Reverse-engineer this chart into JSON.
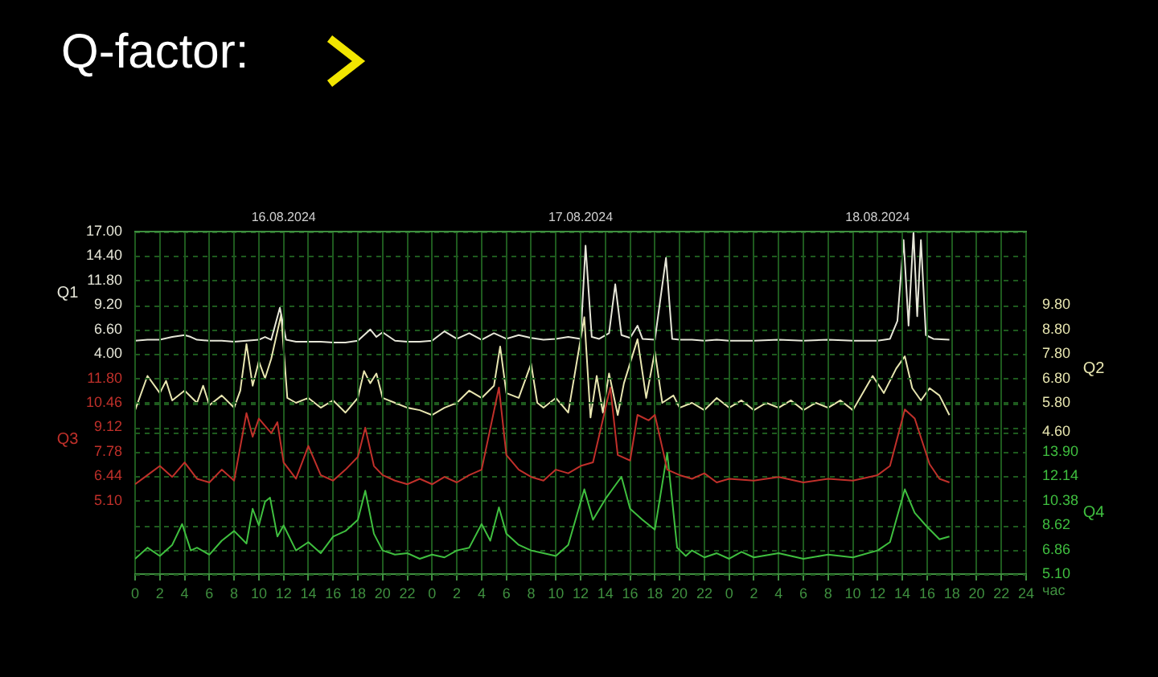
{
  "chart_data": [
    {
      "type": "line",
      "title": "Q-factor:",
      "grid": "y",
      "tick_labels": "y",
      "xlim": [
        "2024-08-16T00:00",
        "2024-08-19T00:00"
      ],
      "ylabel": "Q1",
      "ylim": [
        -19.4,
        17
      ],
      "yticks": [
        {
          "value": 4,
          "label": "4.00"
        },
        {
          "value": 6.6,
          "label": "6.60"
        },
        {
          "value": 9.2,
          "label": "9.20"
        },
        {
          "value": 11.8,
          "label": "11.80"
        },
        {
          "value": 14.4,
          "label": "14.40"
        },
        {
          "value": 17,
          "label": "17.00"
        }
      ],
      "y2label": "Q2",
      "y2lim": [
        -1.2,
        12.8
      ],
      "y2ticks": [
        {
          "value": 4.6,
          "label": "4.60"
        },
        {
          "value": 5.8,
          "label": "5.80"
        },
        {
          "value": 6.8,
          "label": "6.80"
        },
        {
          "value": 7.8,
          "label": "7.80"
        },
        {
          "value": 8.8,
          "label": "8.80"
        },
        {
          "value": 9.8,
          "label": "9.80"
        }
      ],
      "series": [
        {
          "color": "#e6e6d8",
          "axis": "y",
          "x": [
            "2024-08-16T00:00",
            "2024-08-16T01:00",
            "2024-08-16T02:00",
            "2024-08-16T03:00",
            "2024-08-16T04:00",
            "2024-08-16T04:30",
            "2024-08-16T05:00",
            "2024-08-16T06:00",
            "2024-08-16T07:00",
            "2024-08-16T08:00",
            "2024-08-16T09:00",
            "2024-08-16T10:00",
            "2024-08-16T10:30",
            "2024-08-16T11:00",
            "2024-08-16T11:42",
            "2024-08-16T12:12",
            "2024-08-16T13:00",
            "2024-08-16T14:00",
            "2024-08-16T15:00",
            "2024-08-16T16:00",
            "2024-08-16T17:00",
            "2024-08-16T18:00",
            "2024-08-16T19:00",
            "2024-08-16T19:30",
            "2024-08-16T20:00",
            "2024-08-16T21:00",
            "2024-08-16T22:00",
            "2024-08-16T23:00",
            "2024-08-17T00:00",
            "2024-08-17T01:00",
            "2024-08-17T02:00",
            "2024-08-17T03:00",
            "2024-08-17T04:00",
            "2024-08-17T05:00",
            "2024-08-17T06:00",
            "2024-08-17T07:00",
            "2024-08-17T08:00",
            "2024-08-17T09:00",
            "2024-08-17T10:00",
            "2024-08-17T11:00",
            "2024-08-17T12:00",
            "2024-08-17T12:24",
            "2024-08-17T12:54",
            "2024-08-17T13:30",
            "2024-08-17T14:18",
            "2024-08-17T14:48",
            "2024-08-17T15:18",
            "2024-08-17T16:00",
            "2024-08-17T16:36",
            "2024-08-17T17:00",
            "2024-08-17T18:00",
            "2024-08-17T18:54",
            "2024-08-17T19:24",
            "2024-08-17T20:00",
            "2024-08-17T21:00",
            "2024-08-17T22:00",
            "2024-08-17T23:00",
            "2024-08-18T00:00",
            "2024-08-18T02:00",
            "2024-08-18T04:00",
            "2024-08-18T06:00",
            "2024-08-18T08:00",
            "2024-08-18T10:00",
            "2024-08-18T12:00",
            "2024-08-18T13:00",
            "2024-08-18T13:36",
            "2024-08-18T14:06",
            "2024-08-18T14:30",
            "2024-08-18T14:54",
            "2024-08-18T15:12",
            "2024-08-18T15:30",
            "2024-08-18T15:54",
            "2024-08-18T16:30",
            "2024-08-18T17:48"
          ],
          "values": [
            5.4,
            5.5,
            5.5,
            5.8,
            6.0,
            5.8,
            5.5,
            5.4,
            5.4,
            5.3,
            5.4,
            5.5,
            5.8,
            5.5,
            8.9,
            5.5,
            5.3,
            5.3,
            5.3,
            5.2,
            5.2,
            5.4,
            6.6,
            5.8,
            6.3,
            5.4,
            5.3,
            5.3,
            5.4,
            6.4,
            5.6,
            6.2,
            5.5,
            6.2,
            5.6,
            6.0,
            5.7,
            5.5,
            5.6,
            5.8,
            5.6,
            15.5,
            5.8,
            5.6,
            6.2,
            11.4,
            6.0,
            5.7,
            7.0,
            5.6,
            5.5,
            14.2,
            5.6,
            5.5,
            5.5,
            5.4,
            5.5,
            5.4,
            5.4,
            5.5,
            5.4,
            5.5,
            5.4,
            5.4,
            5.6,
            7.5,
            16.1,
            7.0,
            17.0,
            8.0,
            16.1,
            6.0,
            5.6,
            5.5
          ]
        },
        {
          "color": "#e8e6b0",
          "axis": "y2",
          "x": [
            "2024-08-16T00:00",
            "2024-08-16T01:00",
            "2024-08-16T02:00",
            "2024-08-16T02:30",
            "2024-08-16T03:00",
            "2024-08-16T04:00",
            "2024-08-16T05:00",
            "2024-08-16T05:30",
            "2024-08-16T06:00",
            "2024-08-16T07:00",
            "2024-08-16T08:00",
            "2024-08-16T08:30",
            "2024-08-16T09:00",
            "2024-08-16T09:30",
            "2024-08-16T10:00",
            "2024-08-16T10:30",
            "2024-08-16T11:00",
            "2024-08-16T11:48",
            "2024-08-16T12:18",
            "2024-08-16T13:00",
            "2024-08-16T14:00",
            "2024-08-16T15:00",
            "2024-08-16T16:00",
            "2024-08-16T17:00",
            "2024-08-16T18:00",
            "2024-08-16T18:30",
            "2024-08-16T19:00",
            "2024-08-16T19:30",
            "2024-08-16T20:00",
            "2024-08-16T21:00",
            "2024-08-16T22:00",
            "2024-08-16T23:00",
            "2024-08-17T00:00",
            "2024-08-17T01:00",
            "2024-08-17T02:00",
            "2024-08-17T03:00",
            "2024-08-17T04:00",
            "2024-08-17T05:00",
            "2024-08-17T05:30",
            "2024-08-17T06:00",
            "2024-08-17T07:00",
            "2024-08-17T08:00",
            "2024-08-17T08:30",
            "2024-08-17T09:00",
            "2024-08-17T10:00",
            "2024-08-17T11:00",
            "2024-08-17T12:18",
            "2024-08-17T12:48",
            "2024-08-17T13:18",
            "2024-08-17T13:48",
            "2024-08-17T14:18",
            "2024-08-17T15:00",
            "2024-08-17T15:30",
            "2024-08-17T16:36",
            "2024-08-17T17:18",
            "2024-08-17T18:00",
            "2024-08-17T18:36",
            "2024-08-17T19:30",
            "2024-08-17T20:00",
            "2024-08-17T21:00",
            "2024-08-17T22:00",
            "2024-08-17T23:00",
            "2024-08-18T00:00",
            "2024-08-18T01:00",
            "2024-08-18T02:00",
            "2024-08-18T03:00",
            "2024-08-18T04:00",
            "2024-08-18T05:00",
            "2024-08-18T06:00",
            "2024-08-18T07:00",
            "2024-08-18T08:00",
            "2024-08-18T09:00",
            "2024-08-18T10:00",
            "2024-08-18T11:36",
            "2024-08-18T12:30",
            "2024-08-18T13:30",
            "2024-08-18T14:12",
            "2024-08-18T14:48",
            "2024-08-18T15:30",
            "2024-08-18T16:12",
            "2024-08-18T17:00",
            "2024-08-18T17:48"
          ],
          "values": [
            5.5,
            6.9,
            6.2,
            6.7,
            5.9,
            6.3,
            5.8,
            6.5,
            5.7,
            6.1,
            5.6,
            6.3,
            8.2,
            6.5,
            7.5,
            6.8,
            7.6,
            9.4,
            6.0,
            5.8,
            6.0,
            5.6,
            5.9,
            5.4,
            6.0,
            7.1,
            6.6,
            7.0,
            6.0,
            5.8,
            5.6,
            5.5,
            5.3,
            5.6,
            5.8,
            6.3,
            6.0,
            6.5,
            8.1,
            6.2,
            6.0,
            7.4,
            5.8,
            5.6,
            6.0,
            5.4,
            9.3,
            5.2,
            6.9,
            5.4,
            7.0,
            5.3,
            6.6,
            8.4,
            6.0,
            7.9,
            5.8,
            6.1,
            5.6,
            5.8,
            5.5,
            6.0,
            5.6,
            5.9,
            5.5,
            5.8,
            5.6,
            5.9,
            5.5,
            5.8,
            5.6,
            5.9,
            5.5,
            6.9,
            6.2,
            7.2,
            7.7,
            6.4,
            5.9,
            6.4,
            6.1,
            5.3
          ]
        }
      ]
    },
    {
      "type": "line",
      "xlabel": "час",
      "grid": true,
      "xlim": [
        "2024-08-16T00:00",
        "2024-08-19T00:00"
      ],
      "xticks": [
        {
          "value": "2024-08-16T00:00",
          "label": "0"
        },
        {
          "value": "2024-08-16T02:00",
          "label": "2"
        },
        {
          "value": "2024-08-16T04:00",
          "label": "4"
        },
        {
          "value": "2024-08-16T06:00",
          "label": "6"
        },
        {
          "value": "2024-08-16T08:00",
          "label": "8"
        },
        {
          "value": "2024-08-16T10:00",
          "label": "10"
        },
        {
          "value": "2024-08-16T12:00",
          "label": "12"
        },
        {
          "value": "2024-08-16T14:00",
          "label": "14"
        },
        {
          "value": "2024-08-16T16:00",
          "label": "16"
        },
        {
          "value": "2024-08-16T18:00",
          "label": "18"
        },
        {
          "value": "2024-08-16T20:00",
          "label": "20"
        },
        {
          "value": "2024-08-16T22:00",
          "label": "22"
        },
        {
          "value": "2024-08-17T00:00",
          "label": "0"
        },
        {
          "value": "2024-08-17T02:00",
          "label": "2"
        },
        {
          "value": "2024-08-17T04:00",
          "label": "4"
        },
        {
          "value": "2024-08-17T06:00",
          "label": "6"
        },
        {
          "value": "2024-08-17T08:00",
          "label": "8"
        },
        {
          "value": "2024-08-17T10:00",
          "label": "10"
        },
        {
          "value": "2024-08-17T12:00",
          "label": "12"
        },
        {
          "value": "2024-08-17T14:00",
          "label": "14"
        },
        {
          "value": "2024-08-17T16:00",
          "label": "16"
        },
        {
          "value": "2024-08-17T18:00",
          "label": "18"
        },
        {
          "value": "2024-08-17T20:00",
          "label": "20"
        },
        {
          "value": "2024-08-17T22:00",
          "label": "22"
        },
        {
          "value": "2024-08-18T00:00",
          "label": "0"
        },
        {
          "value": "2024-08-18T02:00",
          "label": "2"
        },
        {
          "value": "2024-08-18T04:00",
          "label": "4"
        },
        {
          "value": "2024-08-18T06:00",
          "label": "6"
        },
        {
          "value": "2024-08-18T08:00",
          "label": "8"
        },
        {
          "value": "2024-08-18T10:00",
          "label": "10"
        },
        {
          "value": "2024-08-18T12:00",
          "label": "12"
        },
        {
          "value": "2024-08-18T14:00",
          "label": "14"
        },
        {
          "value": "2024-08-18T16:00",
          "label": "16"
        },
        {
          "value": "2024-08-18T18:00",
          "label": "18"
        },
        {
          "value": "2024-08-18T20:00",
          "label": "20"
        },
        {
          "value": "2024-08-18T22:00",
          "label": "22"
        },
        {
          "value": "2024-08-19T00:00",
          "label": "24"
        }
      ],
      "x2lim": [
        "2024-08-16T00:00",
        "2024-08-19T00:00"
      ],
      "x2ticks": [
        {
          "value": "2024-08-16T12:00",
          "label": "16.08.2024"
        },
        {
          "value": "2024-08-17T12:00",
          "label": "17.08.2024"
        },
        {
          "value": "2024-08-18T12:00",
          "label": "18.08.2024"
        }
      ],
      "ylabel": "Q3",
      "ylim": [
        1.08,
        19.84
      ],
      "yticks": [
        {
          "value": 5.1,
          "label": "5.10"
        },
        {
          "value": 6.44,
          "label": "6.44"
        },
        {
          "value": 7.78,
          "label": "7.78"
        },
        {
          "value": 9.12,
          "label": "9.12"
        },
        {
          "value": 10.46,
          "label": "10.46"
        },
        {
          "value": 11.8,
          "label": "11.80"
        }
      ],
      "y2label": "Q4",
      "y2lim": [
        5.1,
        29.74
      ],
      "y2ticks": [
        {
          "value": 5.1,
          "label": "5.10"
        },
        {
          "value": 6.86,
          "label": "6.86"
        },
        {
          "value": 8.62,
          "label": "8.62"
        },
        {
          "value": 10.38,
          "label": "10.38"
        },
        {
          "value": 12.14,
          "label": "12.14"
        },
        {
          "value": 13.9,
          "label": "13.90"
        }
      ],
      "series": [
        {
          "color": "#c0302a",
          "axis": "y",
          "x": [
            "2024-08-16T00:00",
            "2024-08-16T01:00",
            "2024-08-16T02:00",
            "2024-08-16T03:00",
            "2024-08-16T04:00",
            "2024-08-16T05:00",
            "2024-08-16T06:00",
            "2024-08-16T07:00",
            "2024-08-16T08:00",
            "2024-08-16T09:00",
            "2024-08-16T09:30",
            "2024-08-16T10:00",
            "2024-08-16T11:00",
            "2024-08-16T11:30",
            "2024-08-16T12:00",
            "2024-08-16T13:00",
            "2024-08-16T14:00",
            "2024-08-16T15:00",
            "2024-08-16T16:00",
            "2024-08-16T17:00",
            "2024-08-16T18:00",
            "2024-08-16T18:36",
            "2024-08-16T19:18",
            "2024-08-16T20:00",
            "2024-08-16T21:00",
            "2024-08-16T22:00",
            "2024-08-16T23:00",
            "2024-08-17T00:00",
            "2024-08-17T01:00",
            "2024-08-17T02:00",
            "2024-08-17T03:00",
            "2024-08-17T04:00",
            "2024-08-17T05:24",
            "2024-08-17T06:00",
            "2024-08-17T07:00",
            "2024-08-17T08:00",
            "2024-08-17T09:00",
            "2024-08-17T10:00",
            "2024-08-17T11:00",
            "2024-08-17T12:00",
            "2024-08-17T13:00",
            "2024-08-17T14:24",
            "2024-08-17T15:00",
            "2024-08-17T16:00",
            "2024-08-17T16:36",
            "2024-08-17T17:30",
            "2024-08-17T18:00",
            "2024-08-17T19:00",
            "2024-08-17T20:00",
            "2024-08-17T21:00",
            "2024-08-17T22:00",
            "2024-08-17T23:00",
            "2024-08-18T00:00",
            "2024-08-18T02:00",
            "2024-08-18T04:00",
            "2024-08-18T06:00",
            "2024-08-18T08:00",
            "2024-08-18T10:00",
            "2024-08-18T12:00",
            "2024-08-18T13:00",
            "2024-08-18T14:12",
            "2024-08-18T15:00",
            "2024-08-18T16:12",
            "2024-08-18T17:00",
            "2024-08-18T17:48"
          ],
          "values": [
            6.0,
            6.5,
            7.0,
            6.4,
            7.2,
            6.3,
            6.1,
            6.8,
            6.2,
            9.9,
            8.6,
            9.6,
            8.8,
            9.4,
            7.2,
            6.3,
            8.1,
            6.5,
            6.2,
            6.8,
            7.5,
            9.1,
            7.0,
            6.5,
            6.2,
            6.0,
            6.3,
            6.0,
            6.4,
            6.1,
            6.5,
            6.8,
            11.3,
            7.6,
            6.8,
            6.4,
            6.2,
            6.8,
            6.6,
            7.0,
            7.2,
            11.3,
            7.6,
            7.3,
            9.8,
            9.5,
            9.8,
            6.8,
            6.5,
            6.3,
            6.6,
            6.1,
            6.3,
            6.2,
            6.4,
            6.1,
            6.3,
            6.2,
            6.5,
            7.0,
            10.1,
            9.6,
            7.1,
            6.3,
            6.1
          ]
        },
        {
          "color": "#3fbf3f",
          "axis": "y2",
          "x": [
            "2024-08-16T00:00",
            "2024-08-16T01:00",
            "2024-08-16T02:00",
            "2024-08-16T03:00",
            "2024-08-16T03:48",
            "2024-08-16T04:30",
            "2024-08-16T05:00",
            "2024-08-16T06:00",
            "2024-08-16T07:00",
            "2024-08-16T08:00",
            "2024-08-16T09:00",
            "2024-08-16T09:30",
            "2024-08-16T10:00",
            "2024-08-16T10:30",
            "2024-08-16T10:54",
            "2024-08-16T11:30",
            "2024-08-16T12:00",
            "2024-08-16T13:00",
            "2024-08-16T14:00",
            "2024-08-16T15:00",
            "2024-08-16T16:00",
            "2024-08-16T17:00",
            "2024-08-16T18:00",
            "2024-08-16T18:36",
            "2024-08-16T19:18",
            "2024-08-16T20:00",
            "2024-08-16T21:00",
            "2024-08-16T22:00",
            "2024-08-16T23:00",
            "2024-08-17T00:00",
            "2024-08-17T01:00",
            "2024-08-17T02:00",
            "2024-08-17T03:00",
            "2024-08-17T04:00",
            "2024-08-17T04:42",
            "2024-08-17T05:24",
            "2024-08-17T06:00",
            "2024-08-17T07:00",
            "2024-08-17T08:00",
            "2024-08-17T09:00",
            "2024-08-17T10:00",
            "2024-08-17T11:00",
            "2024-08-17T12:18",
            "2024-08-17T13:00",
            "2024-08-17T14:00",
            "2024-08-17T15:18",
            "2024-08-17T16:00",
            "2024-08-17T17:00",
            "2024-08-17T18:00",
            "2024-08-17T19:00",
            "2024-08-17T19:48",
            "2024-08-17T20:30",
            "2024-08-17T21:00",
            "2024-08-17T22:00",
            "2024-08-17T23:00",
            "2024-08-18T00:00",
            "2024-08-18T01:00",
            "2024-08-18T02:00",
            "2024-08-18T04:00",
            "2024-08-18T06:00",
            "2024-08-18T08:00",
            "2024-08-18T10:00",
            "2024-08-18T12:00",
            "2024-08-18T13:00",
            "2024-08-18T14:12",
            "2024-08-18T15:00",
            "2024-08-18T16:00",
            "2024-08-18T17:00",
            "2024-08-18T17:48"
          ],
          "values": [
            6.2,
            7.0,
            6.4,
            7.2,
            8.7,
            6.8,
            7.0,
            6.5,
            7.5,
            8.2,
            7.3,
            9.8,
            8.6,
            10.3,
            10.6,
            7.8,
            8.6,
            6.8,
            7.4,
            6.6,
            7.8,
            8.2,
            9.0,
            11.1,
            8.0,
            6.8,
            6.5,
            6.6,
            6.2,
            6.5,
            6.3,
            6.8,
            7.0,
            8.7,
            7.5,
            9.9,
            8.0,
            7.2,
            6.8,
            6.6,
            6.4,
            7.2,
            11.2,
            9.0,
            10.5,
            12.1,
            9.8,
            9.0,
            8.3,
            13.8,
            7.0,
            6.4,
            6.8,
            6.3,
            6.6,
            6.2,
            6.7,
            6.3,
            6.6,
            6.2,
            6.5,
            6.3,
            6.8,
            7.4,
            11.2,
            9.5,
            8.5,
            7.6,
            7.8
          ]
        }
      ]
    }
  ]
}
